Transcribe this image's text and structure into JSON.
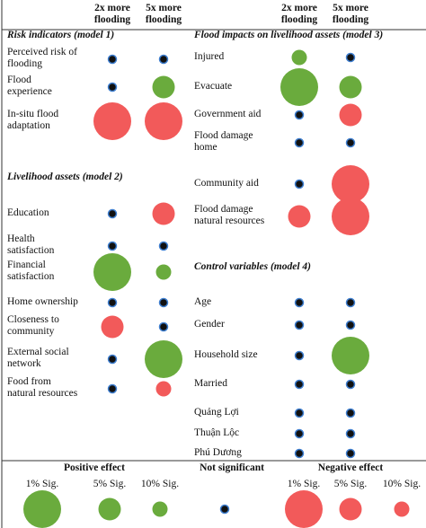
{
  "header": {
    "columns": [
      "2x more\nflooding",
      "5x more\nflooding"
    ]
  },
  "panels": [
    {
      "sections": [
        {
          "title": "Risk indicators (model 1)",
          "rows": [
            {
              "label": "Perceived risk of\nflooding",
              "cells": [
                {
                  "level": null,
                  "color": "#111111"
                },
                {
                  "level": null,
                  "color": "#111111"
                }
              ]
            },
            {
              "label": "Flood\nexperience",
              "cells": [
                {
                  "level": null,
                  "color": "#111111"
                },
                {
                  "level": 5,
                  "color": "#6aab3d"
                }
              ]
            },
            {
              "label": "In-situ flood\nadaptation",
              "cells": [
                {
                  "level": 1,
                  "color": "#f25a5a"
                },
                {
                  "level": 1,
                  "color": "#f25a5a"
                }
              ]
            }
          ]
        },
        {
          "title": "Livelihood assets (model 2)",
          "rows": [
            {
              "label": "Education",
              "cells": [
                {
                  "level": null,
                  "color": "#111111"
                },
                {
                  "level": 5,
                  "color": "#f25a5a"
                }
              ]
            },
            {
              "label": "Health\nsatisfaction",
              "cells": [
                {
                  "level": null,
                  "color": "#111111"
                },
                {
                  "level": null,
                  "color": "#111111"
                }
              ]
            },
            {
              "label": "Financial\nsatisfaction",
              "cells": [
                {
                  "level": 1,
                  "color": "#6aab3d"
                },
                {
                  "level": 10,
                  "color": "#6aab3d"
                }
              ]
            },
            {
              "label": "Home ownership",
              "cells": [
                {
                  "level": null,
                  "color": "#111111"
                },
                {
                  "level": null,
                  "color": "#111111"
                }
              ]
            },
            {
              "label": "Closeness to\ncommunity",
              "cells": [
                {
                  "level": 5,
                  "color": "#f25a5a"
                },
                {
                  "level": null,
                  "color": "#111111"
                }
              ]
            },
            {
              "label": "External social\nnetwork",
              "cells": [
                {
                  "level": null,
                  "color": "#111111"
                },
                {
                  "level": 1,
                  "color": "#6aab3d"
                }
              ]
            },
            {
              "label": "Food from\nnatural resources",
              "cells": [
                {
                  "level": null,
                  "color": "#111111"
                },
                {
                  "level": 10,
                  "color": "#f25a5a"
                }
              ]
            }
          ]
        }
      ]
    },
    {
      "sections": [
        {
          "title": "Flood impacts on livelihood assets (model 3)",
          "rows": [
            {
              "label": "Injured",
              "cells": [
                {
                  "level": 10,
                  "color": "#6aab3d"
                },
                {
                  "level": null,
                  "color": "#111111"
                }
              ]
            },
            {
              "label": "Evacuate",
              "cells": [
                {
                  "level": 1,
                  "color": "#6aab3d"
                },
                {
                  "level": 5,
                  "color": "#6aab3d"
                }
              ]
            },
            {
              "label": "Government aid",
              "cells": [
                {
                  "level": null,
                  "color": "#111111"
                },
                {
                  "level": 5,
                  "color": "#f25a5a"
                }
              ]
            },
            {
              "label": "Flood damage\nhome",
              "cells": [
                {
                  "level": null,
                  "color": "#111111"
                },
                {
                  "level": null,
                  "color": "#111111"
                }
              ]
            },
            {
              "label": "Community aid",
              "cells": [
                {
                  "level": null,
                  "color": "#111111"
                },
                {
                  "level": 1,
                  "color": "#f25a5a"
                }
              ]
            },
            {
              "label": "Flood damage\nnatural resources",
              "cells": [
                {
                  "level": 5,
                  "color": "#f25a5a"
                },
                {
                  "level": 1,
                  "color": "#f25a5a"
                }
              ]
            }
          ]
        },
        {
          "title": "Control variables (model 4)",
          "rows": [
            {
              "label": "Age",
              "cells": [
                {
                  "level": null,
                  "color": "#111111"
                },
                {
                  "level": null,
                  "color": "#111111"
                }
              ]
            },
            {
              "label": "Gender",
              "cells": [
                {
                  "level": null,
                  "color": "#111111"
                },
                {
                  "level": null,
                  "color": "#111111"
                }
              ]
            },
            {
              "label": "Household size",
              "cells": [
                {
                  "level": null,
                  "color": "#111111"
                },
                {
                  "level": 1,
                  "color": "#6aab3d"
                }
              ]
            },
            {
              "label": "Married",
              "cells": [
                {
                  "level": null,
                  "color": "#111111"
                },
                {
                  "level": null,
                  "color": "#111111"
                }
              ]
            },
            {
              "label": "Quảng Lợi",
              "cells": [
                {
                  "level": null,
                  "color": "#111111"
                },
                {
                  "level": null,
                  "color": "#111111"
                }
              ]
            },
            {
              "label": "Thuận Lộc",
              "cells": [
                {
                  "level": null,
                  "color": "#111111"
                },
                {
                  "level": null,
                  "color": "#111111"
                }
              ]
            },
            {
              "label": "Phú Dương",
              "cells": [
                {
                  "level": null,
                  "color": "#111111"
                },
                {
                  "level": null,
                  "color": "#111111"
                }
              ]
            }
          ]
        }
      ]
    }
  ],
  "legend": {
    "groups": [
      {
        "title": "Positive effect",
        "items": [
          {
            "label": "1% Sig.",
            "level": 1,
            "color": "#6aab3d"
          },
          {
            "label": "5% Sig.",
            "level": 5,
            "color": "#6aab3d"
          },
          {
            "label": "10% Sig.",
            "level": 10,
            "color": "#6aab3d"
          }
        ]
      },
      {
        "title": "Not significant",
        "items": [
          {
            "level": null,
            "color": "#111111"
          }
        ]
      },
      {
        "title": "Negative effect",
        "items": [
          {
            "label": "1% Sig.",
            "level": 1,
            "color": "#f25a5a"
          },
          {
            "label": "5% Sig.",
            "level": 5,
            "color": "#f25a5a"
          },
          {
            "label": "10% Sig.",
            "level": 10,
            "color": "#f25a5a"
          }
        ]
      }
    ]
  }
}
